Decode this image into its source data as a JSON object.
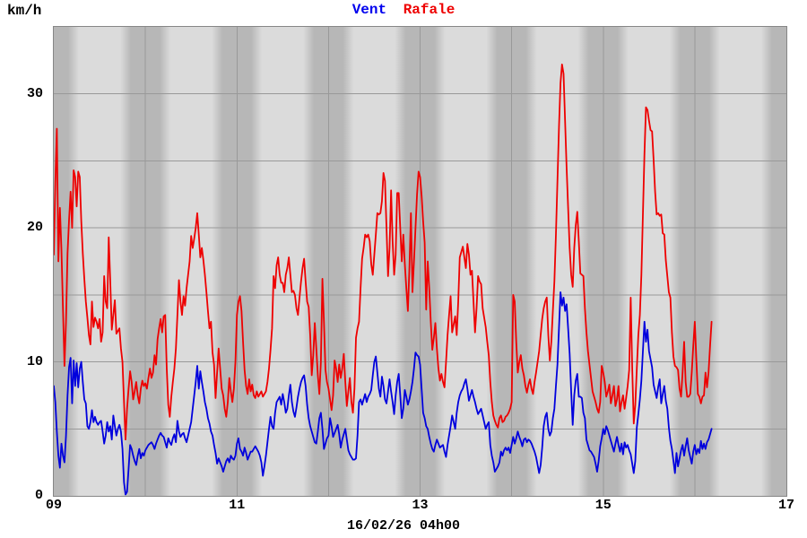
{
  "header": {
    "unit_label": "km/h",
    "legend": [
      {
        "label": "Vent",
        "color": "#0000ee"
      },
      {
        "label": "Rafale",
        "color": "#ee0000"
      }
    ]
  },
  "x_axis": {
    "label": "16/02/26 04h00",
    "ticks": [
      {
        "hour": 9,
        "label": "09"
      },
      {
        "hour": 11,
        "label": "11"
      },
      {
        "hour": 13,
        "label": "13"
      },
      {
        "hour": 15,
        "label": "15"
      },
      {
        "hour": 17,
        "label": "17"
      }
    ]
  },
  "y_axis": {
    "ticks": [
      {
        "value": 0,
        "label": "0"
      },
      {
        "value": 10,
        "label": "10"
      },
      {
        "value": 20,
        "label": "20"
      },
      {
        "value": 30,
        "label": "30"
      }
    ]
  },
  "chart_data": {
    "type": "line",
    "title": "Vent Rafale",
    "ylabel": "km/h",
    "xlabel": "16/02/26 04h00",
    "x_range_hours": [
      9,
      17
    ],
    "ylim": [
      0,
      35
    ],
    "grid": true,
    "x_grid_hours": [
      10,
      11,
      12,
      13,
      14,
      15,
      16
    ],
    "y_grid_values": [
      5,
      10,
      15,
      20,
      25,
      30
    ],
    "x_unit": "minutes since 09h00, 1-min step",
    "series": [
      {
        "name": "Vent",
        "color": "#0000dd",
        "start_hour": 9,
        "step_minutes": 1,
        "values": [
          8.2,
          7.0,
          4.8,
          3.0,
          2.1,
          3.9,
          3.0,
          2.5,
          4.5,
          7.5,
          9.6,
          10.3,
          6.9,
          10.1,
          8.2,
          9.9,
          8.1,
          9.5,
          10.0,
          8.5,
          7.2,
          6.9,
          5.2,
          5.0,
          5.5,
          6.4,
          5.5,
          5.9,
          5.5,
          5.3,
          5.5,
          5.6,
          4.8,
          3.9,
          4.5,
          5.5,
          4.8,
          5.2,
          4.2,
          6.0,
          5.2,
          4.5,
          5.0,
          5.3,
          4.8,
          3.5,
          1.0,
          0.1,
          0.3,
          2.0,
          3.8,
          3.5,
          3.0,
          2.6,
          2.3,
          3.0,
          3.5,
          2.8,
          3.2,
          3.0,
          3.4,
          3.6,
          3.8,
          3.9,
          4.0,
          3.8,
          3.5,
          3.9,
          4.2,
          4.5,
          4.7,
          4.5,
          4.4,
          4.0,
          3.6,
          4.3,
          4.0,
          3.8,
          4.3,
          4.6,
          4.0,
          5.6,
          4.8,
          4.4,
          4.6,
          4.7,
          4.3,
          4.0,
          4.5,
          5.0,
          5.5,
          6.5,
          7.5,
          8.5,
          9.7,
          8.0,
          9.3,
          8.5,
          7.8,
          7.0,
          6.5,
          5.8,
          5.4,
          4.8,
          4.5,
          3.8,
          3.2,
          2.4,
          2.8,
          2.5,
          2.2,
          1.8,
          2.2,
          2.6,
          2.8,
          2.5,
          3.0,
          2.8,
          2.7,
          3.0,
          3.9,
          4.3,
          3.5,
          3.3,
          3.0,
          3.6,
          3.2,
          2.7,
          3.0,
          3.3,
          3.3,
          3.5,
          3.7,
          3.5,
          3.3,
          3.0,
          2.5,
          1.5,
          2.2,
          3.0,
          4.0,
          5.0,
          5.9,
          5.2,
          5.0,
          6.2,
          7.0,
          7.2,
          7.4,
          6.8,
          7.6,
          7.0,
          6.2,
          6.5,
          7.5,
          8.3,
          7.0,
          6.3,
          5.9,
          6.6,
          7.4,
          8.0,
          8.5,
          8.8,
          9.0,
          8.2,
          6.8,
          5.8,
          5.2,
          4.8,
          4.4,
          4.0,
          3.9,
          4.8,
          5.8,
          6.2,
          5.0,
          3.5,
          3.9,
          4.3,
          4.5,
          5.8,
          5.2,
          4.4,
          4.7,
          5.0,
          5.3,
          4.6,
          3.6,
          4.2,
          4.6,
          5.0,
          4.2,
          3.4,
          3.1,
          2.9,
          2.7,
          2.7,
          2.8,
          4.5,
          7.0,
          7.2,
          6.8,
          7.2,
          7.6,
          7.0,
          7.4,
          7.6,
          7.9,
          9.0,
          10.0,
          10.4,
          9.2,
          8.0,
          7.4,
          8.9,
          8.2,
          7.2,
          6.9,
          7.8,
          8.7,
          7.8,
          7.0,
          6.1,
          7.5,
          8.5,
          9.1,
          7.5,
          5.8,
          6.5,
          7.9,
          7.4,
          6.8,
          7.2,
          7.8,
          8.5,
          9.5,
          10.7,
          10.5,
          10.4,
          9.8,
          8.0,
          6.2,
          5.8,
          5.2,
          5.0,
          4.4,
          3.9,
          3.5,
          3.3,
          3.8,
          4.2,
          3.9,
          3.6,
          3.7,
          3.8,
          3.3,
          2.9,
          3.8,
          4.5,
          5.2,
          6.0,
          5.5,
          5.0,
          6.2,
          7.0,
          7.5,
          7.8,
          8.0,
          8.4,
          8.7,
          8.0,
          7.1,
          7.5,
          7.9,
          7.4,
          7.0,
          6.5,
          6.1,
          6.3,
          6.5,
          6.0,
          5.5,
          5.0,
          5.3,
          5.5,
          3.8,
          3.0,
          2.5,
          1.8,
          2.0,
          2.2,
          2.5,
          3.3,
          3.0,
          3.4,
          3.6,
          3.4,
          3.6,
          3.2,
          3.8,
          4.4,
          3.9,
          4.3,
          4.8,
          4.4,
          4.1,
          3.7,
          4.2,
          4.3,
          4.0,
          4.2,
          4.1,
          3.9,
          3.6,
          3.3,
          2.9,
          2.3,
          1.7,
          2.3,
          3.6,
          5.2,
          5.9,
          6.2,
          5.0,
          4.5,
          4.8,
          5.8,
          6.5,
          8.2,
          9.8,
          12.5,
          15.2,
          14.2,
          14.8,
          13.8,
          14.3,
          12.5,
          10.6,
          7.8,
          5.3,
          7.5,
          8.6,
          9.1,
          7.4,
          7.4,
          7.3,
          6.2,
          5.8,
          4.2,
          3.8,
          3.4,
          3.3,
          3.1,
          2.9,
          2.4,
          1.8,
          2.6,
          3.7,
          4.3,
          5.0,
          4.6,
          5.2,
          4.9,
          4.5,
          4.1,
          3.7,
          3.3,
          3.9,
          4.4,
          3.8,
          3.3,
          3.9,
          3.1,
          4.0,
          3.6,
          3.8,
          3.4,
          3.1,
          2.4,
          1.7,
          2.6,
          5.1,
          6.1,
          7.2,
          8.6,
          10.8,
          13.0,
          11.5,
          12.4,
          10.8,
          10.2,
          9.6,
          8.3,
          7.8,
          7.3,
          8.1,
          8.7,
          6.9,
          7.6,
          8.2,
          7.1,
          6.5,
          5.1,
          4.1,
          3.5,
          2.6,
          1.7,
          3.2,
          2.2,
          2.8,
          3.4,
          3.8,
          3.0,
          3.7,
          4.3,
          3.4,
          2.9,
          2.4,
          3.3,
          3.8,
          3.1,
          3.5,
          3.2,
          4.1,
          3.5,
          3.9,
          3.5,
          4.0,
          4.2,
          4.6,
          5.0
        ]
      },
      {
        "name": "Rafale",
        "color": "#ee0000",
        "start_hour": 9,
        "step_minutes": 1,
        "values": [
          18.0,
          23.4,
          27.4,
          17.5,
          21.5,
          18.4,
          14.0,
          9.7,
          13.0,
          18.1,
          20.6,
          22.7,
          20.0,
          24.3,
          23.8,
          21.6,
          24.2,
          23.8,
          20.5,
          18.1,
          16.2,
          14.5,
          13.3,
          12.0,
          11.3,
          14.5,
          12.6,
          13.3,
          13.0,
          12.5,
          13.2,
          11.5,
          12.2,
          16.4,
          14.5,
          14.0,
          19.3,
          16.0,
          12.4,
          13.5,
          14.6,
          12.1,
          12.3,
          12.5,
          11.0,
          10.0,
          7.0,
          4.2,
          6.5,
          8.0,
          9.3,
          8.5,
          7.2,
          7.8,
          8.5,
          7.5,
          6.9,
          8.0,
          8.6,
          8.2,
          8.4,
          8.0,
          8.8,
          9.5,
          8.8,
          9.2,
          10.5,
          9.8,
          11.7,
          12.5,
          13.2,
          12.2,
          13.4,
          13.5,
          9.5,
          6.8,
          5.9,
          7.4,
          8.5,
          9.5,
          11.0,
          13.5,
          16.1,
          14.5,
          13.5,
          14.9,
          14.2,
          15.5,
          16.5,
          17.5,
          19.4,
          18.5,
          19.2,
          20.0,
          21.1,
          19.5,
          17.8,
          18.5,
          17.6,
          16.5,
          15.2,
          13.8,
          12.5,
          13.0,
          10.7,
          9.8,
          7.3,
          9.2,
          11.0,
          9.5,
          8.0,
          7.5,
          6.5,
          5.9,
          7.0,
          8.8,
          7.8,
          7.0,
          8.0,
          10.0,
          13.5,
          14.5,
          14.9,
          13.8,
          11.5,
          9.4,
          8.2,
          7.6,
          8.7,
          7.8,
          8.3,
          7.5,
          7.3,
          7.8,
          7.4,
          7.6,
          7.8,
          7.4,
          7.6,
          7.8,
          8.5,
          9.5,
          10.9,
          12.5,
          16.4,
          15.5,
          17.2,
          17.8,
          16.5,
          15.9,
          15.9,
          15.2,
          16.5,
          17.0,
          17.8,
          16.5,
          15.2,
          15.3,
          15.0,
          14.0,
          13.5,
          14.8,
          16.0,
          17.0,
          17.7,
          16.0,
          14.5,
          14.1,
          12.0,
          9.0,
          10.5,
          12.9,
          11.0,
          9.0,
          7.6,
          10.0,
          16.2,
          13.0,
          9.4,
          8.5,
          8.0,
          7.2,
          6.4,
          7.5,
          10.1,
          9.5,
          8.5,
          9.8,
          8.8,
          9.5,
          10.6,
          8.5,
          6.7,
          7.8,
          8.8,
          7.0,
          6.2,
          8.0,
          11.8,
          12.5,
          13.0,
          15.5,
          17.7,
          18.5,
          19.5,
          19.3,
          19.5,
          19.0,
          17.3,
          16.5,
          18.0,
          19.5,
          21.1,
          21.0,
          21.1,
          22.0,
          24.1,
          23.5,
          20.0,
          16.4,
          18.5,
          22.8,
          19.0,
          16.5,
          18.0,
          22.6,
          22.6,
          20.0,
          17.5,
          19.5,
          17.3,
          15.5,
          13.8,
          17.0,
          21.1,
          15.2,
          17.5,
          20.0,
          22.5,
          24.2,
          23.8,
          22.4,
          20.5,
          18.9,
          13.9,
          17.5,
          15.5,
          13.0,
          10.9,
          11.8,
          12.9,
          11.0,
          9.5,
          8.6,
          9.1,
          8.5,
          8.1,
          10.0,
          12.0,
          13.5,
          14.9,
          12.2,
          12.8,
          13.4,
          12.0,
          14.5,
          17.8,
          18.2,
          18.6,
          17.8,
          17.0,
          18.8,
          18.0,
          16.5,
          16.8,
          14.5,
          12.2,
          14.0,
          16.4,
          16.0,
          15.8,
          14.0,
          13.3,
          12.6,
          11.5,
          10.5,
          8.5,
          7.0,
          6.0,
          5.6,
          5.3,
          5.1,
          5.8,
          6.0,
          5.5,
          5.6,
          5.9,
          6.0,
          6.2,
          6.5,
          7.0,
          15.0,
          14.5,
          11.5,
          9.2,
          10.0,
          10.5,
          9.5,
          9.0,
          8.2,
          7.7,
          8.3,
          8.7,
          8.0,
          7.6,
          8.5,
          9.2,
          10.0,
          10.8,
          12.0,
          13.2,
          14.0,
          14.5,
          14.8,
          12.0,
          10.1,
          11.5,
          13.8,
          16.0,
          19.5,
          23.5,
          27.5,
          30.8,
          32.2,
          31.5,
          28.0,
          24.5,
          21.5,
          18.5,
          16.5,
          15.6,
          18.5,
          20.2,
          21.2,
          19.0,
          16.6,
          16.5,
          16.4,
          14.0,
          12.2,
          10.8,
          9.8,
          8.8,
          7.8,
          7.4,
          7.0,
          6.5,
          6.2,
          7.0,
          9.7,
          9.2,
          8.5,
          7.4,
          7.8,
          8.3,
          6.9,
          7.5,
          8.2,
          6.7,
          7.2,
          8.2,
          6.3,
          7.0,
          7.5,
          6.5,
          7.3,
          8.2,
          9.4,
          14.8,
          9.5,
          5.4,
          6.8,
          9.5,
          12.0,
          13.5,
          16.5,
          21.0,
          25.5,
          29.0,
          28.8,
          28.0,
          27.3,
          27.2,
          25.1,
          22.7,
          21.0,
          21.1,
          20.9,
          21.0,
          19.6,
          19.5,
          17.6,
          16.4,
          15.2,
          14.8,
          12.2,
          10.4,
          9.7,
          9.6,
          9.4,
          8.0,
          7.4,
          9.2,
          11.5,
          8.5,
          7.4,
          7.4,
          7.6,
          9.2,
          11.2,
          13.0,
          10.2,
          7.6,
          7.4,
          6.9,
          7.4,
          7.5,
          9.2,
          8.1,
          9.2,
          11.2,
          13.0
        ]
      }
    ]
  }
}
